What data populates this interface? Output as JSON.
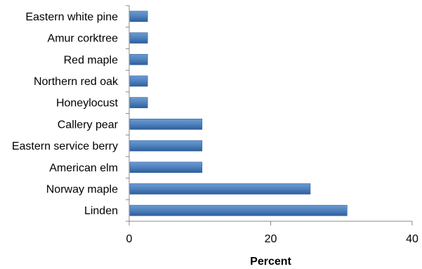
{
  "chart_data": {
    "type": "bar",
    "orientation": "horizontal",
    "categories": [
      "Eastern white pine",
      "Amur corktree",
      "Red maple",
      "Northern red oak",
      "Honeylocust",
      "Callery pear",
      "Eastern service berry",
      "American elm",
      "Norway maple",
      "Linden"
    ],
    "values": [
      2.6,
      2.6,
      2.6,
      2.6,
      2.6,
      10.3,
      10.3,
      10.3,
      25.6,
      30.8
    ],
    "xlabel": "Percent",
    "ylabel": "",
    "xlim": [
      0,
      40
    ],
    "xticks": [
      "0",
      "20",
      "40"
    ],
    "grid": false,
    "legend": "none",
    "bar_color": "#4f81bd",
    "bar_color_dark": "#2e5f9a"
  }
}
